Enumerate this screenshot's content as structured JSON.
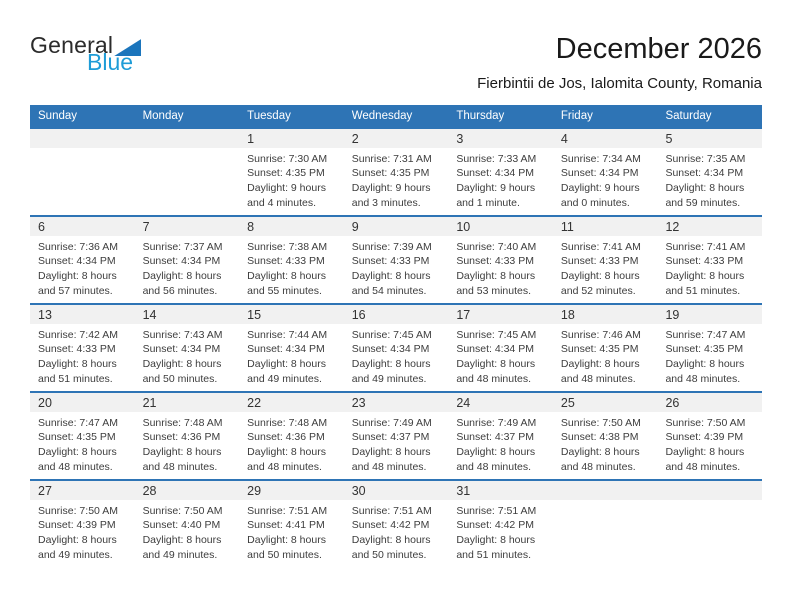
{
  "logo": {
    "general": "General",
    "blue": "Blue"
  },
  "header": {
    "title": "December 2026",
    "subtitle": "Fierbintii de Jos, Ialomita County, Romania"
  },
  "weekdays": [
    "Sunday",
    "Monday",
    "Tuesday",
    "Wednesday",
    "Thursday",
    "Friday",
    "Saturday"
  ],
  "weeks": [
    [
      null,
      null,
      {
        "day": "1",
        "lines": [
          "Sunrise: 7:30 AM",
          "Sunset: 4:35 PM",
          "Daylight: 9 hours",
          "and 4 minutes."
        ]
      },
      {
        "day": "2",
        "lines": [
          "Sunrise: 7:31 AM",
          "Sunset: 4:35 PM",
          "Daylight: 9 hours",
          "and 3 minutes."
        ]
      },
      {
        "day": "3",
        "lines": [
          "Sunrise: 7:33 AM",
          "Sunset: 4:34 PM",
          "Daylight: 9 hours",
          "and 1 minute."
        ]
      },
      {
        "day": "4",
        "lines": [
          "Sunrise: 7:34 AM",
          "Sunset: 4:34 PM",
          "Daylight: 9 hours",
          "and 0 minutes."
        ]
      },
      {
        "day": "5",
        "lines": [
          "Sunrise: 7:35 AM",
          "Sunset: 4:34 PM",
          "Daylight: 8 hours",
          "and 59 minutes."
        ]
      }
    ],
    [
      {
        "day": "6",
        "lines": [
          "Sunrise: 7:36 AM",
          "Sunset: 4:34 PM",
          "Daylight: 8 hours",
          "and 57 minutes."
        ]
      },
      {
        "day": "7",
        "lines": [
          "Sunrise: 7:37 AM",
          "Sunset: 4:34 PM",
          "Daylight: 8 hours",
          "and 56 minutes."
        ]
      },
      {
        "day": "8",
        "lines": [
          "Sunrise: 7:38 AM",
          "Sunset: 4:33 PM",
          "Daylight: 8 hours",
          "and 55 minutes."
        ]
      },
      {
        "day": "9",
        "lines": [
          "Sunrise: 7:39 AM",
          "Sunset: 4:33 PM",
          "Daylight: 8 hours",
          "and 54 minutes."
        ]
      },
      {
        "day": "10",
        "lines": [
          "Sunrise: 7:40 AM",
          "Sunset: 4:33 PM",
          "Daylight: 8 hours",
          "and 53 minutes."
        ]
      },
      {
        "day": "11",
        "lines": [
          "Sunrise: 7:41 AM",
          "Sunset: 4:33 PM",
          "Daylight: 8 hours",
          "and 52 minutes."
        ]
      },
      {
        "day": "12",
        "lines": [
          "Sunrise: 7:41 AM",
          "Sunset: 4:33 PM",
          "Daylight: 8 hours",
          "and 51 minutes."
        ]
      }
    ],
    [
      {
        "day": "13",
        "lines": [
          "Sunrise: 7:42 AM",
          "Sunset: 4:33 PM",
          "Daylight: 8 hours",
          "and 51 minutes."
        ]
      },
      {
        "day": "14",
        "lines": [
          "Sunrise: 7:43 AM",
          "Sunset: 4:34 PM",
          "Daylight: 8 hours",
          "and 50 minutes."
        ]
      },
      {
        "day": "15",
        "lines": [
          "Sunrise: 7:44 AM",
          "Sunset: 4:34 PM",
          "Daylight: 8 hours",
          "and 49 minutes."
        ]
      },
      {
        "day": "16",
        "lines": [
          "Sunrise: 7:45 AM",
          "Sunset: 4:34 PM",
          "Daylight: 8 hours",
          "and 49 minutes."
        ]
      },
      {
        "day": "17",
        "lines": [
          "Sunrise: 7:45 AM",
          "Sunset: 4:34 PM",
          "Daylight: 8 hours",
          "and 48 minutes."
        ]
      },
      {
        "day": "18",
        "lines": [
          "Sunrise: 7:46 AM",
          "Sunset: 4:35 PM",
          "Daylight: 8 hours",
          "and 48 minutes."
        ]
      },
      {
        "day": "19",
        "lines": [
          "Sunrise: 7:47 AM",
          "Sunset: 4:35 PM",
          "Daylight: 8 hours",
          "and 48 minutes."
        ]
      }
    ],
    [
      {
        "day": "20",
        "lines": [
          "Sunrise: 7:47 AM",
          "Sunset: 4:35 PM",
          "Daylight: 8 hours",
          "and 48 minutes."
        ]
      },
      {
        "day": "21",
        "lines": [
          "Sunrise: 7:48 AM",
          "Sunset: 4:36 PM",
          "Daylight: 8 hours",
          "and 48 minutes."
        ]
      },
      {
        "day": "22",
        "lines": [
          "Sunrise: 7:48 AM",
          "Sunset: 4:36 PM",
          "Daylight: 8 hours",
          "and 48 minutes."
        ]
      },
      {
        "day": "23",
        "lines": [
          "Sunrise: 7:49 AM",
          "Sunset: 4:37 PM",
          "Daylight: 8 hours",
          "and 48 minutes."
        ]
      },
      {
        "day": "24",
        "lines": [
          "Sunrise: 7:49 AM",
          "Sunset: 4:37 PM",
          "Daylight: 8 hours",
          "and 48 minutes."
        ]
      },
      {
        "day": "25",
        "lines": [
          "Sunrise: 7:50 AM",
          "Sunset: 4:38 PM",
          "Daylight: 8 hours",
          "and 48 minutes."
        ]
      },
      {
        "day": "26",
        "lines": [
          "Sunrise: 7:50 AM",
          "Sunset: 4:39 PM",
          "Daylight: 8 hours",
          "and 48 minutes."
        ]
      }
    ],
    [
      {
        "day": "27",
        "lines": [
          "Sunrise: 7:50 AM",
          "Sunset: 4:39 PM",
          "Daylight: 8 hours",
          "and 49 minutes."
        ]
      },
      {
        "day": "28",
        "lines": [
          "Sunrise: 7:50 AM",
          "Sunset: 4:40 PM",
          "Daylight: 8 hours",
          "and 49 minutes."
        ]
      },
      {
        "day": "29",
        "lines": [
          "Sunrise: 7:51 AM",
          "Sunset: 4:41 PM",
          "Daylight: 8 hours",
          "and 50 minutes."
        ]
      },
      {
        "day": "30",
        "lines": [
          "Sunrise: 7:51 AM",
          "Sunset: 4:42 PM",
          "Daylight: 8 hours",
          "and 50 minutes."
        ]
      },
      {
        "day": "31",
        "lines": [
          "Sunrise: 7:51 AM",
          "Sunset: 4:42 PM",
          "Daylight: 8 hours",
          "and 51 minutes."
        ]
      },
      null,
      null
    ]
  ],
  "colors": {
    "header_blue": "#2e74b5",
    "strip_gray": "#f1f1f1",
    "logo_triangle_blue": "#1b75bc",
    "logo_blue_text": "#1e9cd7"
  }
}
